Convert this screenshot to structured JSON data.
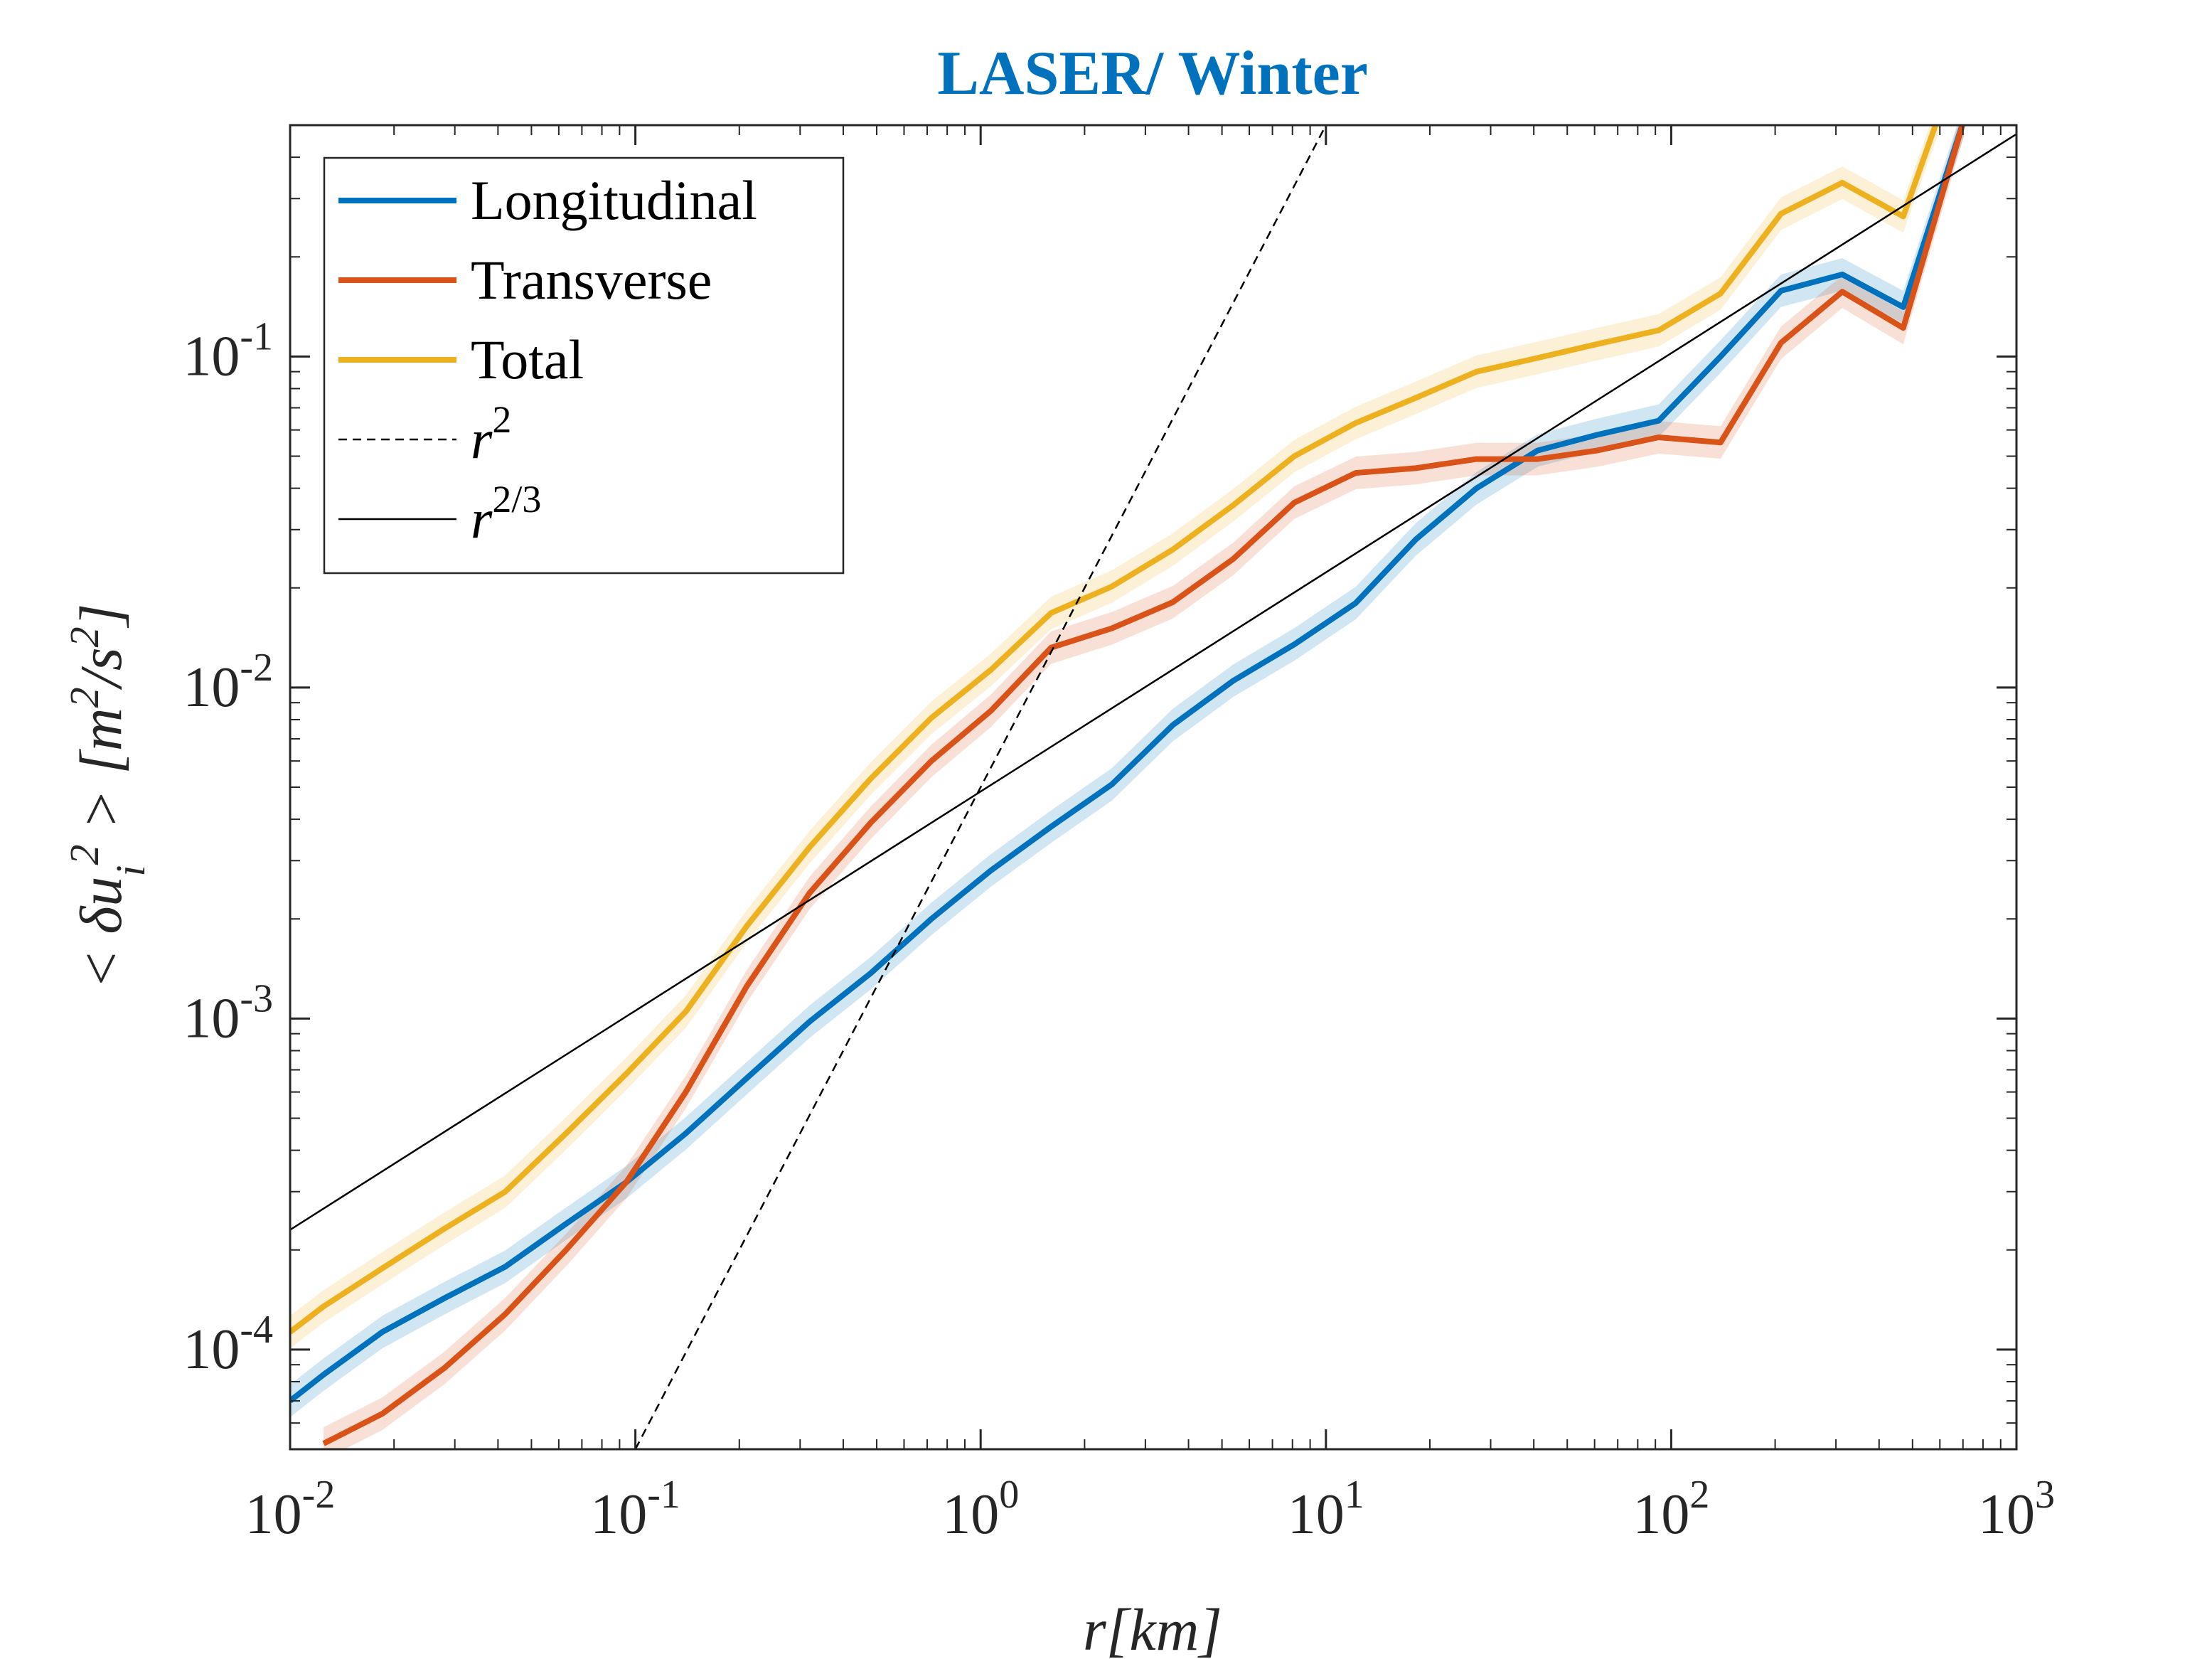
{
  "chart_data": {
    "type": "line",
    "title": "LASER/ Winter",
    "title_color": "#0072BD",
    "xlabel": "r[km]",
    "ylabel": "< δu_i^2 > [m^2/s^2]",
    "xscale": "log",
    "yscale": "log",
    "xlim": [
      0.01,
      1000
    ],
    "ylim": [
      5e-05,
      0.5
    ],
    "grid": false,
    "legend_position": "top-left",
    "x_ticks": [
      {
        "value": 0.01,
        "base": "10",
        "exp": "-2"
      },
      {
        "value": 0.1,
        "base": "10",
        "exp": "-1"
      },
      {
        "value": 1,
        "base": "10",
        "exp": "0"
      },
      {
        "value": 10,
        "base": "10",
        "exp": "1"
      },
      {
        "value": 100,
        "base": "10",
        "exp": "2"
      },
      {
        "value": 1000,
        "base": "10",
        "exp": "3"
      }
    ],
    "y_ticks": [
      {
        "value": 0.0001,
        "base": "10",
        "exp": "-4"
      },
      {
        "value": 0.001,
        "base": "10",
        "exp": "-3"
      },
      {
        "value": 0.01,
        "base": "10",
        "exp": "-2"
      },
      {
        "value": 0.1,
        "base": "10",
        "exp": "-1"
      }
    ],
    "series": [
      {
        "name": "Longitudinal",
        "color": "#0072BD",
        "style": "solid-thick",
        "band": true,
        "x": [
          0.01,
          0.0125,
          0.0185,
          0.028,
          0.042,
          0.063,
          0.094,
          0.14,
          0.21,
          0.32,
          0.48,
          0.72,
          1.07,
          1.6,
          2.4,
          3.6,
          5.4,
          8.1,
          12.2,
          18.2,
          27.3,
          41,
          61,
          92,
          139,
          208,
          313,
          470,
          705
        ],
        "y": [
          7e-05,
          8.4e-05,
          0.000113,
          0.000143,
          0.000178,
          0.00024,
          0.00032,
          0.00045,
          0.00066,
          0.00098,
          0.00137,
          0.002,
          0.0028,
          0.0038,
          0.0051,
          0.0077,
          0.0105,
          0.0135,
          0.018,
          0.028,
          0.04,
          0.052,
          0.058,
          0.064,
          0.1,
          0.158,
          0.177,
          0.141,
          0.52
        ]
      },
      {
        "name": "Transverse",
        "color": "#D95319",
        "style": "solid-thick",
        "band": true,
        "x": [
          0.0125,
          0.0185,
          0.028,
          0.042,
          0.063,
          0.094,
          0.14,
          0.21,
          0.32,
          0.48,
          0.72,
          1.07,
          1.6,
          2.4,
          3.6,
          5.4,
          8.1,
          12.2,
          18.2,
          27.3,
          41,
          61,
          92,
          139,
          208,
          313,
          470,
          705
        ],
        "y": [
          5.2e-05,
          6.4e-05,
          8.8e-05,
          0.000128,
          0.0002,
          0.00032,
          0.0006,
          0.00125,
          0.0024,
          0.0039,
          0.006,
          0.0085,
          0.0132,
          0.0151,
          0.0181,
          0.0245,
          0.0362,
          0.0445,
          0.046,
          0.049,
          0.049,
          0.052,
          0.057,
          0.055,
          0.11,
          0.157,
          0.122,
          0.52
        ]
      },
      {
        "name": "Total",
        "color": "#EDB120",
        "style": "solid-thick",
        "band": true,
        "x": [
          0.01,
          0.0125,
          0.0185,
          0.028,
          0.042,
          0.063,
          0.094,
          0.14,
          0.21,
          0.32,
          0.48,
          0.72,
          1.07,
          1.6,
          2.4,
          3.6,
          5.4,
          8.1,
          12.2,
          18.2,
          27.3,
          41,
          61,
          92,
          139,
          208,
          313,
          470,
          620
        ],
        "y": [
          0.000113,
          0.000135,
          0.000176,
          0.000232,
          0.0003,
          0.00045,
          0.00068,
          0.00105,
          0.0019,
          0.0033,
          0.0053,
          0.0081,
          0.0113,
          0.0168,
          0.0202,
          0.0261,
          0.0356,
          0.05,
          0.063,
          0.075,
          0.09,
          0.099,
          0.109,
          0.12,
          0.155,
          0.27,
          0.335,
          0.265,
          0.6
        ]
      },
      {
        "name": "r^2",
        "color": "#000000",
        "style": "dashed",
        "band": false,
        "x": [
          0.1,
          10
        ],
        "y": [
          5e-05,
          0.5
        ]
      },
      {
        "name": "r^2/3",
        "color": "#000000",
        "style": "solid-thin",
        "band": false,
        "x": [
          0.01,
          1000
        ],
        "y": [
          0.00023,
          0.47
        ]
      }
    ]
  }
}
